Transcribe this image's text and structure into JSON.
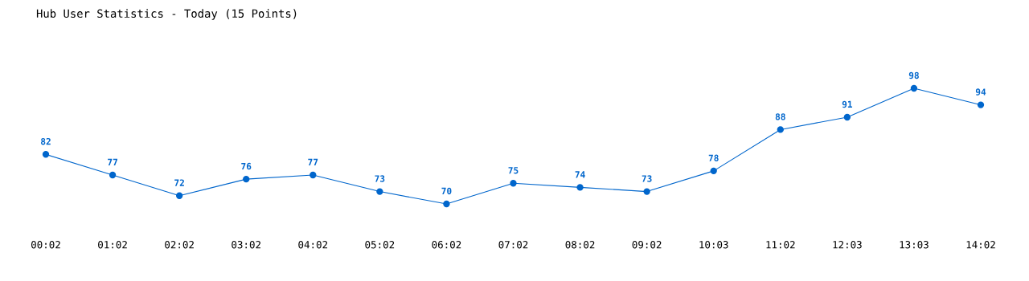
{
  "chart_data": {
    "type": "line",
    "title": "Hub User Statistics - Today (15 Points)",
    "categories": [
      "00:02",
      "01:02",
      "02:02",
      "03:02",
      "04:02",
      "05:02",
      "06:02",
      "07:02",
      "08:02",
      "09:02",
      "10:03",
      "11:02",
      "12:03",
      "13:03",
      "14:02"
    ],
    "series": [
      {
        "color": "#0066cc",
        "values": [
          82,
          77,
          72,
          76,
          77,
          73,
          70,
          75,
          74,
          73,
          78,
          88,
          91,
          98,
          94
        ]
      }
    ],
    "data_labels": true,
    "marker": "circle",
    "line_style": "solid",
    "grid": false,
    "legend": false,
    "tick_labels": "x"
  }
}
